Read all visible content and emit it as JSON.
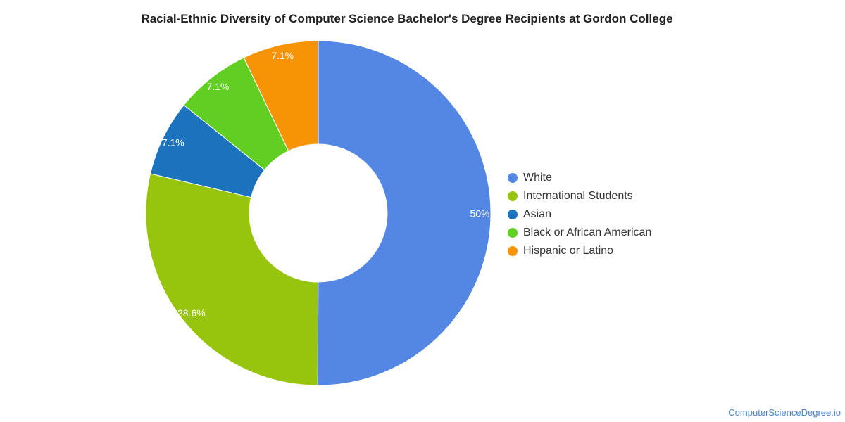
{
  "title": "Racial-Ethnic Diversity of Computer Science Bachelor's Degree Recipients at Gordon College",
  "source": "ComputerScienceDegree.io",
  "chart_data": {
    "type": "pie",
    "donut": true,
    "title": "Racial-Ethnic Diversity of Computer Science Bachelor's Degree Recipients at Gordon College",
    "legend_position": "right",
    "categories": [
      "White",
      "International Students",
      "Asian",
      "Black or African American",
      "Hispanic or Latino"
    ],
    "values": [
      50,
      28.6,
      7.1,
      7.1,
      7.1
    ],
    "labels": [
      "50%",
      "28.6%",
      "7.1%",
      "7.1%",
      "7.1%"
    ],
    "colors": [
      "#5387e3",
      "#97c40d",
      "#1c73bd",
      "#61ce22",
      "#f79406"
    ]
  }
}
